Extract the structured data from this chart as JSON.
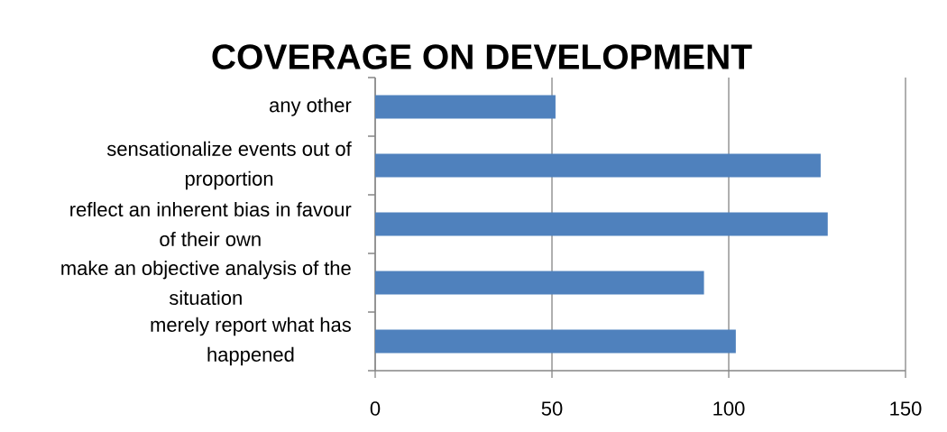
{
  "chart_data": {
    "type": "bar",
    "orientation": "horizontal",
    "title": "COVERAGE ON DEVELOPMENT",
    "categories": [
      "any other",
      "sensationalize events out of proportion",
      "reflect an inherent bias in favour of their own",
      "make an objective analysis of the situation",
      "merely report what has happened"
    ],
    "values": [
      51,
      126,
      128,
      93,
      102
    ],
    "color": "#4f81bd",
    "xlim": [
      0,
      150
    ],
    "xticks": [
      0,
      50,
      100,
      150
    ],
    "grid": "x"
  }
}
